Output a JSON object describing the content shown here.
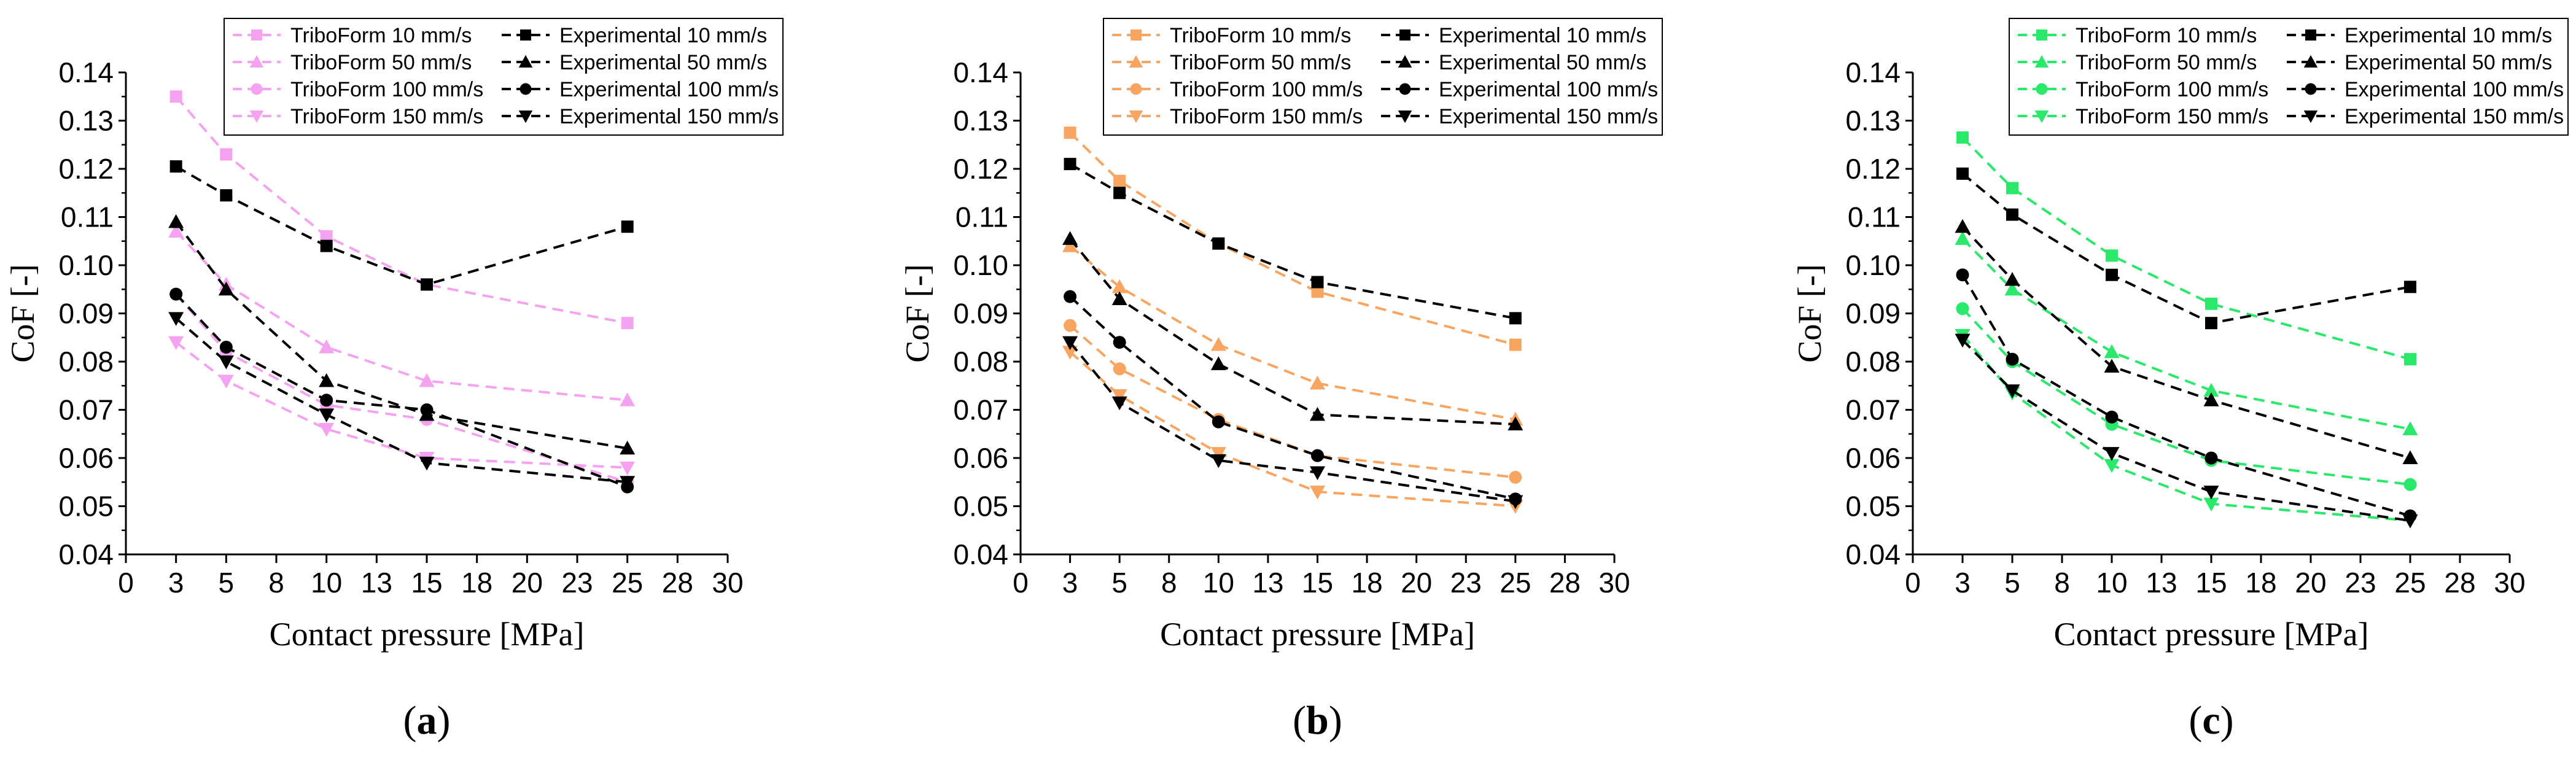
{
  "chart_data": [
    {
      "type": "line",
      "panel_label": "a",
      "xlabel": "Contact pressure [MPa]",
      "ylabel": "CoF [-]",
      "xlim": [
        0,
        30
      ],
      "ylim": [
        0.04,
        0.14
      ],
      "xticks": [
        "0",
        "3",
        "5",
        "8",
        "10",
        "13",
        "15",
        "18",
        "20",
        "23",
        "25",
        "28",
        "30"
      ],
      "yticks": [
        "0.04",
        "0.05",
        "0.06",
        "0.07",
        "0.08",
        "0.09",
        "0.10",
        "0.11",
        "0.12",
        "0.13",
        "0.14"
      ],
      "x": [
        2.5,
        5,
        10,
        15,
        25
      ],
      "series_color": "#f5a3f0",
      "series": [
        {
          "name": "TriboForm 10 mm/s",
          "marker": "square",
          "values": [
            0.135,
            0.123,
            0.106,
            0.096,
            0.088
          ]
        },
        {
          "name": "TriboForm 50 mm/s",
          "marker": "triangle-up",
          "values": [
            0.107,
            0.096,
            0.083,
            0.076,
            0.072
          ]
        },
        {
          "name": "TriboForm 100 mm/s",
          "marker": "circle",
          "values": [
            0.094,
            0.082,
            0.071,
            0.068,
            0.055
          ]
        },
        {
          "name": "TriboForm 150 mm/s",
          "marker": "triangle-down",
          "values": [
            0.084,
            0.076,
            0.066,
            0.06,
            0.058
          ]
        },
        {
          "name": "Experimental 10 mm/s",
          "marker": "square",
          "values": [
            0.1205,
            0.1145,
            0.104,
            0.096,
            0.108
          ]
        },
        {
          "name": "Experimental 50 mm/s",
          "marker": "triangle-up",
          "values": [
            0.109,
            0.095,
            0.076,
            0.069,
            0.062
          ]
        },
        {
          "name": "Experimental 100 mm/s",
          "marker": "circle",
          "values": [
            0.094,
            0.083,
            0.072,
            0.07,
            0.054
          ]
        },
        {
          "name": "Experimental 150 mm/s",
          "marker": "triangle-down",
          "values": [
            0.089,
            0.08,
            0.069,
            0.059,
            0.055
          ]
        }
      ]
    },
    {
      "type": "line",
      "panel_label": "b",
      "xlabel": "Contact pressure [MPa]",
      "ylabel": "CoF [-]",
      "xlim": [
        0,
        30
      ],
      "ylim": [
        0.04,
        0.14
      ],
      "xticks": [
        "0",
        "3",
        "5",
        "8",
        "10",
        "13",
        "15",
        "18",
        "20",
        "23",
        "25",
        "28",
        "30"
      ],
      "yticks": [
        "0.04",
        "0.05",
        "0.06",
        "0.07",
        "0.08",
        "0.09",
        "0.10",
        "0.11",
        "0.12",
        "0.13",
        "0.14"
      ],
      "x": [
        2.5,
        5,
        10,
        15,
        25
      ],
      "series_color": "#f7a560",
      "series": [
        {
          "name": "TriboForm 10 mm/s",
          "marker": "square",
          "values": [
            0.1275,
            0.1175,
            0.1045,
            0.0945,
            0.0835
          ]
        },
        {
          "name": "TriboForm 50 mm/s",
          "marker": "triangle-up",
          "values": [
            0.104,
            0.0955,
            0.0835,
            0.0755,
            0.068
          ]
        },
        {
          "name": "TriboForm 100 mm/s",
          "marker": "circle",
          "values": [
            0.0875,
            0.0785,
            0.068,
            0.0605,
            0.056
          ]
        },
        {
          "name": "TriboForm 150 mm/s",
          "marker": "triangle-down",
          "values": [
            0.082,
            0.073,
            0.061,
            0.053,
            0.05
          ]
        },
        {
          "name": "Experimental 10 mm/s",
          "marker": "square",
          "values": [
            0.121,
            0.115,
            0.1045,
            0.0965,
            0.089
          ]
        },
        {
          "name": "Experimental 50 mm/s",
          "marker": "triangle-up",
          "values": [
            0.1055,
            0.093,
            0.0795,
            0.069,
            0.067
          ]
        },
        {
          "name": "Experimental 100 mm/s",
          "marker": "circle",
          "values": [
            0.0935,
            0.084,
            0.0675,
            0.0605,
            0.0515
          ]
        },
        {
          "name": "Experimental 150 mm/s",
          "marker": "triangle-down",
          "values": [
            0.084,
            0.0715,
            0.0595,
            0.057,
            0.051
          ]
        }
      ]
    },
    {
      "type": "line",
      "panel_label": "c",
      "xlabel": "Contact pressure [MPa]",
      "ylabel": "CoF [-]",
      "xlim": [
        0,
        30
      ],
      "ylim": [
        0.04,
        0.14
      ],
      "xticks": [
        "0",
        "3",
        "5",
        "8",
        "10",
        "13",
        "15",
        "18",
        "20",
        "23",
        "25",
        "28",
        "30"
      ],
      "yticks": [
        "0.04",
        "0.05",
        "0.06",
        "0.07",
        "0.08",
        "0.09",
        "0.10",
        "0.11",
        "0.12",
        "0.13",
        "0.14"
      ],
      "x": [
        2.5,
        5,
        10,
        15,
        25
      ],
      "series_color": "#29e86a",
      "series": [
        {
          "name": "TriboForm 10 mm/s",
          "marker": "square",
          "values": [
            0.1265,
            0.116,
            0.102,
            0.092,
            0.0805
          ]
        },
        {
          "name": "TriboForm 50 mm/s",
          "marker": "triangle-up",
          "values": [
            0.1055,
            0.095,
            0.082,
            0.074,
            0.066
          ]
        },
        {
          "name": "TriboForm 100 mm/s",
          "marker": "circle",
          "values": [
            0.091,
            0.08,
            0.067,
            0.0595,
            0.0545
          ]
        },
        {
          "name": "TriboForm 150 mm/s",
          "marker": "triangle-down",
          "values": [
            0.0855,
            0.0735,
            0.0585,
            0.0505,
            0.047
          ]
        },
        {
          "name": "Experimental 10 mm/s",
          "marker": "square",
          "values": [
            0.119,
            0.1105,
            0.098,
            0.088,
            0.0955
          ]
        },
        {
          "name": "Experimental 50 mm/s",
          "marker": "triangle-up",
          "values": [
            0.108,
            0.097,
            0.079,
            0.072,
            0.06
          ]
        },
        {
          "name": "Experimental 100 mm/s",
          "marker": "circle",
          "values": [
            0.098,
            0.0805,
            0.0685,
            0.06,
            0.048
          ]
        },
        {
          "name": "Experimental 150 mm/s",
          "marker": "triangle-down",
          "values": [
            0.0845,
            0.074,
            0.061,
            0.053,
            0.047
          ]
        }
      ]
    }
  ]
}
